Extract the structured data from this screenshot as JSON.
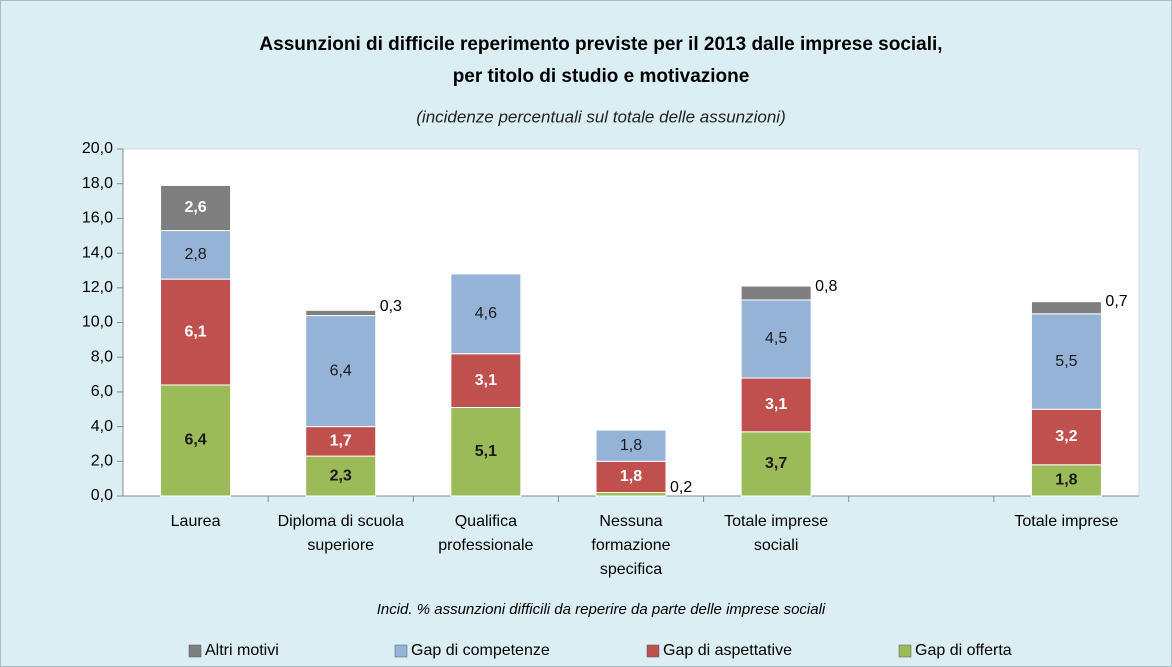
{
  "chart_data": {
    "type": "stacked_bar",
    "title": "Assunzioni di difficile reperimento previste per il 2013 dalle imprese sociali,",
    "title_line2": "per titolo di studio e motivazione",
    "subtitle": "(incidenze percentuali sul totale delle assunzioni)",
    "x_label": "Incid. % assunzioni difficili da reperire da parte delle imprese sociali",
    "categories": [
      "Laurea",
      "Diploma di scuola superiore",
      "Qualifica professionale",
      "Nessuna formazione specifica",
      "Totale imprese sociali",
      null,
      "Totale imprese"
    ],
    "series": [
      {
        "name": "Gap di offerta",
        "color": "#9bbb59",
        "values": [
          6.4,
          2.3,
          5.1,
          0.2,
          3.7,
          null,
          1.8
        ],
        "value_labels": [
          "6,4",
          "2,3",
          "5,1",
          "0,2",
          "3,7",
          null,
          "1,8"
        ]
      },
      {
        "name": "Gap di aspettative",
        "color": "#c0504d",
        "values": [
          6.1,
          1.7,
          3.1,
          1.8,
          3.1,
          null,
          3.2
        ],
        "value_labels": [
          "6,1",
          "1,7",
          "3,1",
          "1,8",
          "3,1",
          null,
          "3,2"
        ]
      },
      {
        "name": "Gap di competenze",
        "color": "#95b3d7",
        "values": [
          2.8,
          6.4,
          4.6,
          1.8,
          4.5,
          null,
          5.5
        ],
        "value_labels": [
          "2,8",
          "6,4",
          "4,6",
          "1,8",
          "4,5",
          null,
          "5,5"
        ]
      },
      {
        "name": "Altri motivi",
        "color": "#7f7f7f",
        "values": [
          2.6,
          0.3,
          null,
          null,
          0.8,
          null,
          0.7
        ],
        "value_labels": [
          "2,6",
          "0,3",
          null,
          null,
          "0,8",
          null,
          "0,7"
        ]
      }
    ],
    "legend_order": [
      3,
      2,
      1,
      0
    ],
    "ylim": [
      0,
      20
    ],
    "yticks": [
      {
        "value": 0,
        "label": "0,0"
      },
      {
        "value": 2,
        "label": "2,0"
      },
      {
        "value": 4,
        "label": "4,0"
      },
      {
        "value": 6,
        "label": "6,0"
      },
      {
        "value": 8,
        "label": "8,0"
      },
      {
        "value": 10,
        "label": "10,0"
      },
      {
        "value": 12,
        "label": "12,0"
      },
      {
        "value": 14,
        "label": "14,0"
      },
      {
        "value": 16,
        "label": "16,0"
      },
      {
        "value": 18,
        "label": "18,0"
      },
      {
        "value": 20,
        "label": "20,0"
      }
    ],
    "grid": false
  }
}
